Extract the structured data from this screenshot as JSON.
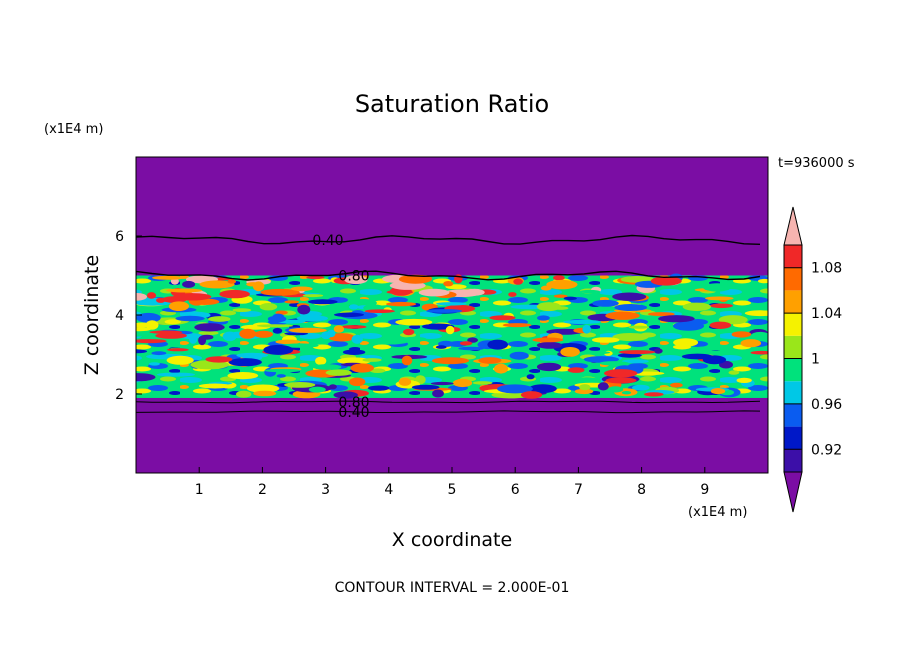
{
  "chart_data": {
    "type": "heatmap",
    "title": "Saturation Ratio",
    "xlabel": "X coordinate",
    "ylabel": "Z coordinate",
    "x_unit": "(x1E4 m)",
    "y_unit": "(x1E4 m)",
    "time_label": "t=936000 s",
    "footer": "CONTOUR INTERVAL = 2.000E-01",
    "xlim": [
      0,
      10
    ],
    "ylim": [
      0,
      8
    ],
    "x_ticks": [
      1,
      2,
      3,
      4,
      5,
      6,
      7,
      8,
      9
    ],
    "y_ticks": [
      2,
      4,
      6
    ],
    "cloud_layer_z": [
      1.9,
      5.0
    ],
    "contour_lines": [
      {
        "label": "0.40",
        "z": 5.9
      },
      {
        "label": "0.80",
        "z": 5.0
      },
      {
        "label": "0.80",
        "z": 1.8
      },
      {
        "label": "0.40",
        "z": 1.55
      }
    ],
    "colorbar": {
      "levels": [
        0.9,
        0.92,
        0.94,
        0.96,
        0.98,
        1.0,
        1.02,
        1.04,
        1.06,
        1.08,
        1.1
      ],
      "tick_labels": [
        "0.92",
        "0.96",
        "1",
        "1.04",
        "1.08"
      ],
      "colors": [
        "#7B0DA4",
        "#3C0FA8",
        "#0018C8",
        "#0A5CF0",
        "#00C8E6",
        "#00E27C",
        "#9AE61A",
        "#F5F200",
        "#FFA000",
        "#FF6A00",
        "#F02828",
        "#F6B4B0"
      ]
    },
    "background_color": "#7B0DA4"
  }
}
